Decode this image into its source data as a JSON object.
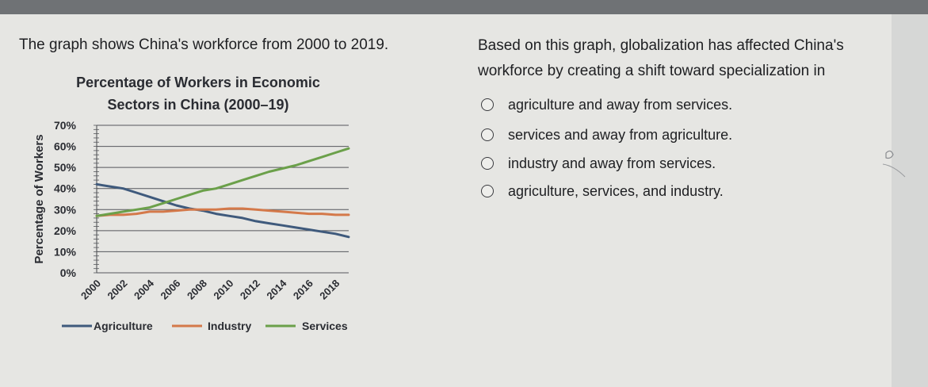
{
  "question": {
    "intro": "The graph shows China's workforce from 2000 to 2019.",
    "prompt": "Based on this graph, globalization has affected China's workforce by creating a shift toward specialization in",
    "options": [
      "agriculture and away from services.",
      "services and away from agriculture.",
      "industry and away from services.",
      "agriculture, services, and industry."
    ]
  },
  "chart_data": {
    "type": "line",
    "title_line1": "Percentage of Workers in Economic",
    "title_line2": "Sectors in China (2000–19)",
    "ylabel": "Percentage of Workers",
    "ylim": [
      0,
      70
    ],
    "yticks": [
      0,
      10,
      20,
      30,
      40,
      50,
      60,
      70
    ],
    "ytick_labels": [
      "0%",
      "10%",
      "20%",
      "30%",
      "40%",
      "50%",
      "60%",
      "70%"
    ],
    "xticks": [
      "2000",
      "2002",
      "2004",
      "2006",
      "2008",
      "2010",
      "2012",
      "2014",
      "2016",
      "2018"
    ],
    "grid": true,
    "legend_position": "bottom",
    "x": [
      2000,
      2001,
      2002,
      2003,
      2004,
      2005,
      2006,
      2007,
      2008,
      2009,
      2010,
      2011,
      2012,
      2013,
      2014,
      2015,
      2016,
      2017,
      2018,
      2019
    ],
    "series": [
      {
        "name": "Agriculture",
        "color": "#3f5a7c",
        "values": [
          42,
          41,
          40,
          38,
          36,
          34,
          32,
          30.5,
          29.5,
          28,
          27,
          26,
          24.5,
          23.5,
          22.5,
          21.5,
          20.5,
          19.5,
          18.5,
          17
        ]
      },
      {
        "name": "Industry",
        "color": "#d4794a",
        "values": [
          27,
          27.5,
          27.5,
          28,
          29,
          29,
          29.5,
          30,
          30,
          30,
          30.5,
          30.5,
          30,
          29.5,
          29,
          28.5,
          28,
          28,
          27.5,
          27.5
        ]
      },
      {
        "name": "Services",
        "color": "#6ba04a",
        "values": [
          27,
          28,
          29,
          30,
          31,
          33,
          35,
          37,
          39,
          40,
          42,
          44,
          46,
          48,
          49.5,
          51,
          53,
          55,
          57,
          59
        ]
      }
    ]
  },
  "colors": {
    "agriculture": "#3f5a7c",
    "industry": "#d4794a",
    "services": "#6ba04a"
  }
}
